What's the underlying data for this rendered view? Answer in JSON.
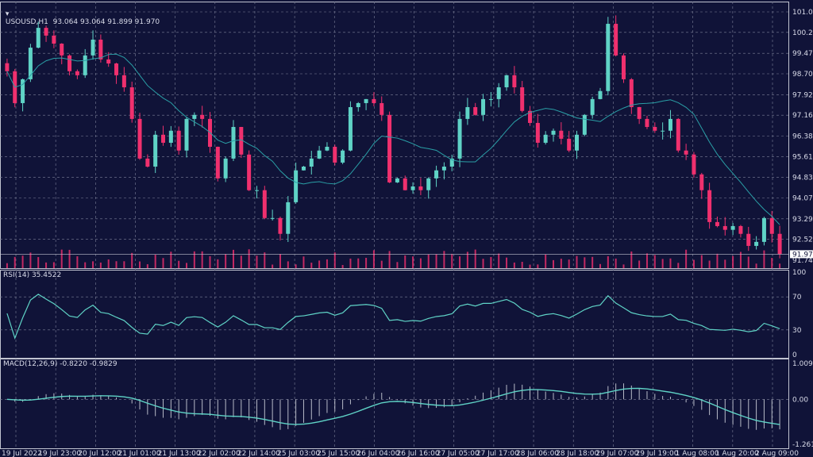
{
  "header": {
    "symbol": "USOUSD,H1",
    "ohlc": "93.064 93.064 91.899 91.970"
  },
  "rsi_label": "RSI(14) 35.4522",
  "macd_label": "MACD(12,26,9) -0.8220 -0.9829",
  "colors": {
    "background": "#101338",
    "bull": "#5fd3c6",
    "bear": "#f0306e",
    "ma": "#2a9fa6",
    "grid": "#7c8098",
    "rsi": "#5fd3c6",
    "macd": "#5fd3c6"
  },
  "chart_data": {
    "type": "candlestick",
    "price_ticks": [
      "101.015",
      "100.250",
      "99.470",
      "98.705",
      "97.925",
      "97.160",
      "96.380",
      "95.615",
      "94.835",
      "94.070",
      "93.290",
      "92.525",
      "91.745"
    ],
    "price_range": [
      91.745,
      101.015
    ],
    "current_price": "91.970",
    "rsi_ticks": [
      "100",
      "70",
      "30",
      "0"
    ],
    "macd_ticks": [
      "1.0091",
      "0.00",
      "-1.2619"
    ],
    "macd_range": [
      -1.2619,
      1.0091
    ],
    "time_labels": [
      "19 Jul 2022",
      "19 Jul 23:00",
      "20 Jul 12:00",
      "21 Jul 01:00",
      "21 Jul 13:00",
      "22 Jul 02:00",
      "22 Jul 14:00",
      "25 Jul 03:00",
      "25 Jul 15:00",
      "26 Jul 04:00",
      "26 Jul 16:00",
      "27 Jul 05:00",
      "27 Jul 17:00",
      "28 Jul 06:00",
      "28 Jul 18:00",
      "29 Jul 07:00",
      "29 Jul 19:00",
      "1 Aug 08:00",
      "1 Aug 20:00",
      "2 Aug 09:00"
    ],
    "closes": [
      98.8,
      97.61,
      98.5,
      99.68,
      100.42,
      100.13,
      99.83,
      99.39,
      98.8,
      98.65,
      99.39,
      99.98,
      99.24,
      99.09,
      98.65,
      98.2,
      97.02,
      95.54,
      95.24,
      96.43,
      96.13,
      96.58,
      95.84,
      97.02,
      97.17,
      97.02,
      95.98,
      94.8,
      95.54,
      96.72,
      95.69,
      94.36,
      94.36,
      93.32,
      93.32,
      92.73,
      93.91,
      95.1,
      95.24,
      95.54,
      95.84,
      95.98,
      95.39,
      95.84,
      97.46,
      97.61,
      97.76,
      97.61,
      97.17,
      94.65,
      94.8,
      94.36,
      94.5,
      94.36,
      94.8,
      95.1,
      95.24,
      95.54,
      97.02,
      97.46,
      97.17,
      97.76,
      97.76,
      98.2,
      98.65,
      98.2,
      97.32,
      96.87,
      96.13,
      96.43,
      96.58,
      96.28,
      95.84,
      96.43,
      97.17,
      97.76,
      98.06,
      100.57,
      99.39,
      98.5,
      97.46,
      97.02,
      96.72,
      96.58,
      96.58,
      97.02,
      95.84,
      95.69,
      94.95,
      94.36,
      93.17,
      93.02,
      92.88,
      93.02,
      92.73,
      92.28,
      92.43,
      93.32,
      92.73,
      91.97
    ]
  }
}
